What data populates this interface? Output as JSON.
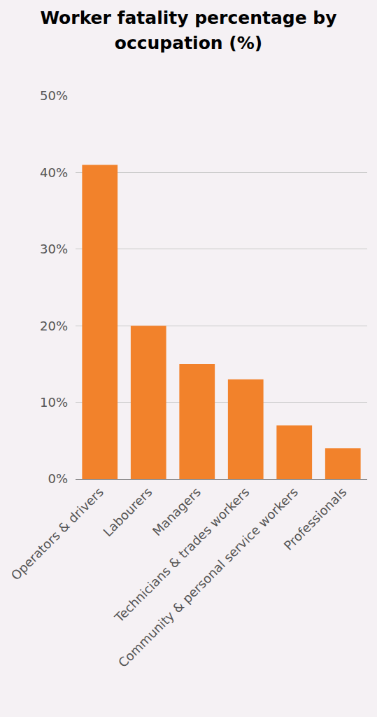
{
  "chart_data": {
    "type": "bar",
    "title": "Worker fatality percentage by occupation (%)",
    "categories": [
      "Operators & drivers",
      "Labourers",
      "Managers",
      "Technicians & trades workers",
      "Community & personal service workers",
      "Professionals"
    ],
    "values": [
      41,
      20,
      15,
      13,
      7,
      4
    ],
    "color": "#f2822b",
    "ylim": [
      0,
      50
    ],
    "yticks": [
      {
        "value": 0,
        "label": "0%"
      },
      {
        "value": 10,
        "label": "10%"
      },
      {
        "value": 20,
        "label": "20%"
      },
      {
        "value": 30,
        "label": "30%"
      },
      {
        "value": 40,
        "label": "40%"
      },
      {
        "value": 50,
        "label": "50%"
      }
    ],
    "grid": true
  }
}
